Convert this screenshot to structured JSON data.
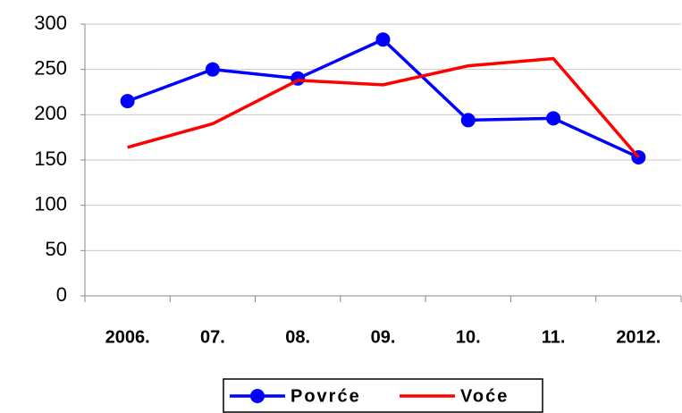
{
  "chart_data": {
    "type": "line",
    "categories": [
      "2006.",
      "07.",
      "08.",
      "09.",
      "10.",
      "11.",
      "2012."
    ],
    "series": [
      {
        "name": "Povrće",
        "color": "#0000ff",
        "marker": true,
        "values": [
          215,
          250,
          240,
          283,
          194,
          196,
          153
        ]
      },
      {
        "name": "Voće",
        "color": "#ff0000",
        "marker": false,
        "values": [
          164,
          190,
          238,
          233,
          254,
          262,
          153
        ]
      }
    ],
    "ylim": [
      0,
      300
    ],
    "yticks": [
      0,
      50,
      100,
      150,
      200,
      250,
      300
    ],
    "grid": true,
    "legend": "bottom"
  }
}
